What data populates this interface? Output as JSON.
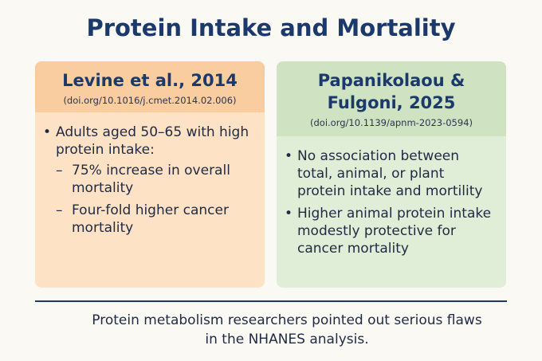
{
  "title": "Protein Intake and Mortality",
  "cards": [
    {
      "heading": "Levine et al., 2014",
      "doi": "(doi.org/10.1016/j.cmet.2014.02.006)",
      "bullets": [
        {
          "text": "Adults aged 50–65 with high protein intake:",
          "subitems": [
            "75% increase in overall mortality",
            "Four-fold higher cancer mortality"
          ]
        }
      ]
    },
    {
      "heading": "Papanikolaou & Fulgoni, 2025",
      "doi": "(doi.org/10.1139/apnm-2023-0594)",
      "bullets": [
        {
          "text": "No association between total, animal, or plant protein intake and mortility"
        },
        {
          "text": "Higher animal protein intake modestly protective for cancer mortality"
        }
      ]
    }
  ],
  "footer": "Protein metabolism researchers pointed out serious flaws in the NHANES analysis."
}
